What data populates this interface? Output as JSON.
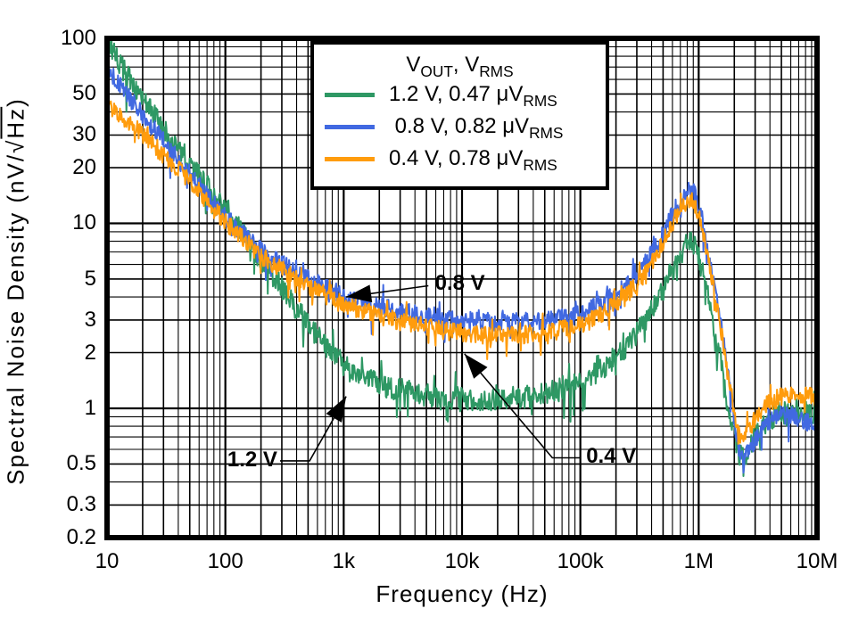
{
  "chart_data": {
    "type": "line",
    "title": "",
    "xlabel": "Frequency (Hz)",
    "ylabel_pre": "Spectral Noise Density (nV/√",
    "ylabel_overline": "Hz",
    "ylabel_post": ")",
    "x_scale": "log",
    "y_scale": "log",
    "xlim": [
      10,
      10000000
    ],
    "ylim": [
      0.2,
      100
    ],
    "grid": {
      "minor": true,
      "color": "#000000"
    },
    "x_ticks": [
      {
        "v": 10,
        "label": "10"
      },
      {
        "v": 100,
        "label": "100"
      },
      {
        "v": 1000,
        "label": "1k"
      },
      {
        "v": 10000,
        "label": "10k"
      },
      {
        "v": 100000,
        "label": "100k"
      },
      {
        "v": 1000000,
        "label": "1M"
      },
      {
        "v": 10000000,
        "label": "10M"
      }
    ],
    "y_ticks": [
      {
        "v": 100,
        "label": "100"
      },
      {
        "v": 50,
        "label": "50"
      },
      {
        "v": 30,
        "label": "30"
      },
      {
        "v": 20,
        "label": "20"
      },
      {
        "v": 10,
        "label": "10"
      },
      {
        "v": 5,
        "label": "5"
      },
      {
        "v": 3,
        "label": "3"
      },
      {
        "v": 2,
        "label": "2"
      },
      {
        "v": 1,
        "label": "1"
      },
      {
        "v": 0.5,
        "label": "0.5"
      },
      {
        "v": 0.3,
        "label": "0.3"
      },
      {
        "v": 0.2,
        "label": "0.2"
      }
    ],
    "legend": {
      "title": "V~OUT~, V~RMS~",
      "position": "top-center-inside",
      "entries": [
        {
          "label": "1.2 V, 0.47 μV~RMS~",
          "color": "#2E9864"
        },
        {
          "label": " 0.8 V, 0.82 μV~RMS~",
          "color": "#4169E1"
        },
        {
          "label": "0.4 V, 0.78 μV~RMS~",
          "color": "#FF9C0D"
        }
      ]
    },
    "series": [
      {
        "name": "1.2 V",
        "vout": "1.2 V",
        "vrms": "0.47 μVRMS",
        "color": "#2E9864",
        "noise_amp": 0.062,
        "seed": 7,
        "points": [
          [
            10,
            95
          ],
          [
            13,
            72
          ],
          [
            17,
            54
          ],
          [
            22,
            43
          ],
          [
            28,
            35
          ],
          [
            36,
            28
          ],
          [
            47,
            22.5
          ],
          [
            60,
            18
          ],
          [
            78,
            14.5
          ],
          [
            100,
            11.8
          ],
          [
            130,
            9.5
          ],
          [
            170,
            7.4
          ],
          [
            220,
            5.9
          ],
          [
            290,
            4.6
          ],
          [
            380,
            3.6
          ],
          [
            500,
            2.85
          ],
          [
            650,
            2.3
          ],
          [
            850,
            1.9
          ],
          [
            1100,
            1.65
          ],
          [
            1500,
            1.45
          ],
          [
            2000,
            1.35
          ],
          [
            3000,
            1.26
          ],
          [
            5000,
            1.18
          ],
          [
            8000,
            1.14
          ],
          [
            13000,
            1.12
          ],
          [
            20000,
            1.12
          ],
          [
            30000,
            1.14
          ],
          [
            50000,
            1.2
          ],
          [
            70000,
            1.27
          ],
          [
            100000,
            1.4
          ],
          [
            150000,
            1.63
          ],
          [
            220000,
            2.0
          ],
          [
            300000,
            2.55
          ],
          [
            400000,
            3.4
          ],
          [
            500000,
            4.4
          ],
          [
            600000,
            5.6
          ],
          [
            700000,
            6.8
          ],
          [
            800000,
            7.8
          ],
          [
            870000,
            8.2
          ],
          [
            950000,
            7.3
          ],
          [
            1100000,
            5.2
          ],
          [
            1300000,
            3.1
          ],
          [
            1600000,
            1.55
          ],
          [
            1900000,
            0.85
          ],
          [
            2150000,
            0.58
          ],
          [
            2400000,
            0.54
          ],
          [
            2700000,
            0.62
          ],
          [
            3200000,
            0.75
          ],
          [
            4000000,
            0.87
          ],
          [
            5000000,
            0.94
          ],
          [
            6300000,
            0.98
          ],
          [
            8000000,
            0.96
          ],
          [
            10000000,
            0.9
          ]
        ]
      },
      {
        "name": "0.8 V",
        "vout": "0.8 V",
        "vrms": "0.82 μVRMS",
        "color": "#4169E1",
        "noise_amp": 0.05,
        "seed": 13,
        "points": [
          [
            10,
            70
          ],
          [
            13,
            55
          ],
          [
            17,
            44
          ],
          [
            22,
            36
          ],
          [
            28,
            29.5
          ],
          [
            36,
            24
          ],
          [
            47,
            19.5
          ],
          [
            60,
            16
          ],
          [
            78,
            13
          ],
          [
            100,
            10.8
          ],
          [
            130,
            9.2
          ],
          [
            170,
            7.9
          ],
          [
            220,
            6.9
          ],
          [
            290,
            6.1
          ],
          [
            380,
            5.5
          ],
          [
            500,
            5.0
          ],
          [
            650,
            4.6
          ],
          [
            850,
            4.25
          ],
          [
            1100,
            4.0
          ],
          [
            1500,
            3.75
          ],
          [
            2000,
            3.55
          ],
          [
            3000,
            3.35
          ],
          [
            5000,
            3.15
          ],
          [
            8000,
            3.02
          ],
          [
            13000,
            2.95
          ],
          [
            20000,
            2.92
          ],
          [
            30000,
            2.92
          ],
          [
            50000,
            2.98
          ],
          [
            70000,
            3.08
          ],
          [
            100000,
            3.25
          ],
          [
            150000,
            3.65
          ],
          [
            220000,
            4.35
          ],
          [
            300000,
            5.3
          ],
          [
            400000,
            6.9
          ],
          [
            500000,
            8.8
          ],
          [
            600000,
            11.2
          ],
          [
            700000,
            13.3
          ],
          [
            800000,
            15.0
          ],
          [
            870000,
            15.6
          ],
          [
            950000,
            13.8
          ],
          [
            1100000,
            9.5
          ],
          [
            1300000,
            5.3
          ],
          [
            1600000,
            2.4
          ],
          [
            1900000,
            1.1
          ],
          [
            2150000,
            0.62
          ],
          [
            2400000,
            0.52
          ],
          [
            2700000,
            0.6
          ],
          [
            3200000,
            0.73
          ],
          [
            4000000,
            0.85
          ],
          [
            5000000,
            0.92
          ],
          [
            6300000,
            0.92
          ],
          [
            8000000,
            0.86
          ],
          [
            10000000,
            0.78
          ]
        ]
      },
      {
        "name": "0.4 V",
        "vout": "0.4 V",
        "vrms": "0.78 μVRMS",
        "color": "#FF9C0D",
        "noise_amp": 0.05,
        "seed": 29,
        "points": [
          [
            10,
            44
          ],
          [
            13,
            38
          ],
          [
            17,
            33
          ],
          [
            22,
            28.5
          ],
          [
            28,
            24.5
          ],
          [
            36,
            21
          ],
          [
            47,
            17.5
          ],
          [
            60,
            14.8
          ],
          [
            78,
            12.2
          ],
          [
            100,
            10.2
          ],
          [
            130,
            8.7
          ],
          [
            170,
            7.4
          ],
          [
            220,
            6.4
          ],
          [
            290,
            5.7
          ],
          [
            380,
            5.1
          ],
          [
            500,
            4.6
          ],
          [
            650,
            4.2
          ],
          [
            850,
            3.85
          ],
          [
            1100,
            3.6
          ],
          [
            1500,
            3.35
          ],
          [
            2000,
            3.15
          ],
          [
            3000,
            2.95
          ],
          [
            5000,
            2.75
          ],
          [
            8000,
            2.6
          ],
          [
            13000,
            2.52
          ],
          [
            20000,
            2.48
          ],
          [
            30000,
            2.48
          ],
          [
            50000,
            2.55
          ],
          [
            70000,
            2.65
          ],
          [
            100000,
            2.82
          ],
          [
            150000,
            3.2
          ],
          [
            220000,
            3.85
          ],
          [
            300000,
            4.7
          ],
          [
            400000,
            6.1
          ],
          [
            500000,
            7.9
          ],
          [
            600000,
            10.0
          ],
          [
            700000,
            11.9
          ],
          [
            800000,
            13.3
          ],
          [
            870000,
            13.8
          ],
          [
            950000,
            12.3
          ],
          [
            1100000,
            8.6
          ],
          [
            1300000,
            4.9
          ],
          [
            1600000,
            2.3
          ],
          [
            1900000,
            1.15
          ],
          [
            2150000,
            0.72
          ],
          [
            2400000,
            0.68
          ],
          [
            2700000,
            0.78
          ],
          [
            3200000,
            0.95
          ],
          [
            4000000,
            1.08
          ],
          [
            5000000,
            1.16
          ],
          [
            6300000,
            1.2
          ],
          [
            8000000,
            1.19
          ],
          [
            10000000,
            1.12
          ]
        ]
      }
    ],
    "annotations": [
      {
        "label": "0.8 V",
        "label_at": [
          5900,
          4.7
        ],
        "anchor": "left",
        "leader": [
          [
            5200,
            4.6
          ],
          [
            1050,
            4.0
          ]
        ]
      },
      {
        "label": "1.2 V",
        "label_at": [
          275,
          0.52
        ],
        "anchor": "right",
        "leader": [
          [
            290,
            0.52
          ],
          [
            515,
            0.52
          ],
          [
            1050,
            1.16
          ]
        ]
      },
      {
        "label": "0.4 V",
        "label_at": [
          112000,
          0.54
        ],
        "anchor": "left",
        "leader": [
          [
            100000,
            0.54
          ],
          [
            58000,
            0.54
          ],
          [
            10500,
            1.97
          ]
        ]
      }
    ]
  }
}
